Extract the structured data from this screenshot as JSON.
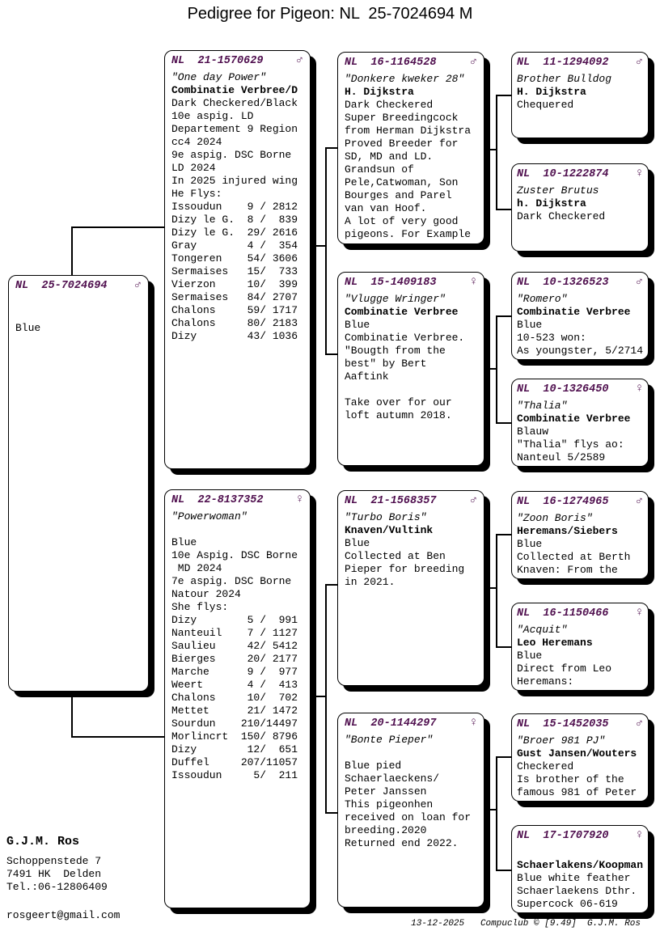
{
  "title": "Pedigree for Pigeon: NL  25-7024694 M",
  "accent_color": "#50104f",
  "boxes": [
    {
      "ring": "NL  25-7024694",
      "sex": "♂",
      "lines": [
        {
          "t": "",
          "s": "n"
        },
        {
          "t": "",
          "s": "n"
        },
        {
          "t": "Blue",
          "s": "n"
        }
      ]
    },
    {
      "ring": "NL  21-1570629",
      "sex": "♂",
      "lines": [
        {
          "t": "\"One day Power\"",
          "s": "i"
        },
        {
          "t": "Combinatie Verbree/D",
          "s": "b"
        },
        {
          "t": "Dark Checkered/Black",
          "s": "n"
        },
        {
          "t": "10e aspig. LD",
          "s": "n"
        },
        {
          "t": "Departement 9 Region",
          "s": "n"
        },
        {
          "t": "cc4 2024",
          "s": "n"
        },
        {
          "t": "9e aspig. DSC Borne",
          "s": "n"
        },
        {
          "t": "LD 2024",
          "s": "n"
        },
        {
          "t": "In 2025 injured wing",
          "s": "n"
        },
        {
          "t": "He Flys:",
          "s": "n"
        },
        {
          "t": "Issoudun    9 / 2812",
          "s": "n"
        },
        {
          "t": "Dizy le G.  8 /  839",
          "s": "n"
        },
        {
          "t": "Dizy le G.  29/ 2616",
          "s": "n"
        },
        {
          "t": "Gray        4 /  354",
          "s": "n"
        },
        {
          "t": "Tongeren    54/ 3606",
          "s": "n"
        },
        {
          "t": "Sermaises   15/  733",
          "s": "n"
        },
        {
          "t": "Vierzon     10/  399",
          "s": "n"
        },
        {
          "t": "Sermaises   84/ 2707",
          "s": "n"
        },
        {
          "t": "Chalons     59/ 1717",
          "s": "n"
        },
        {
          "t": "Chalons     80/ 2183",
          "s": "n"
        },
        {
          "t": "Dizy        43/ 1036",
          "s": "n"
        }
      ]
    },
    {
      "ring": "NL  22-8137352",
      "sex": "♀",
      "lines": [
        {
          "t": "\"Powerwoman\"",
          "s": "i"
        },
        {
          "t": "",
          "s": "n"
        },
        {
          "t": "Blue",
          "s": "n"
        },
        {
          "t": "10e Aspig. DSC Borne",
          "s": "n"
        },
        {
          "t": " MD 2024",
          "s": "n"
        },
        {
          "t": "7e aspig. DSC Borne",
          "s": "n"
        },
        {
          "t": "Natour 2024",
          "s": "n"
        },
        {
          "t": "She flys:",
          "s": "n"
        },
        {
          "t": "Dizy        5 /  991",
          "s": "n"
        },
        {
          "t": "Nanteuil    7 / 1127",
          "s": "n"
        },
        {
          "t": "Saulieu     42/ 5412",
          "s": "n"
        },
        {
          "t": "Bierges     20/ 2177",
          "s": "n"
        },
        {
          "t": "Marche      9 /  977",
          "s": "n"
        },
        {
          "t": "Weert       4 /  413",
          "s": "n"
        },
        {
          "t": "Chalons     10/  702",
          "s": "n"
        },
        {
          "t": "Mettet      21/ 1472",
          "s": "n"
        },
        {
          "t": "Sourdun    210/14497",
          "s": "n"
        },
        {
          "t": "Morlincrt  150/ 8796",
          "s": "n"
        },
        {
          "t": "Dizy        12/  651",
          "s": "n"
        },
        {
          "t": "Duffel     207/11057",
          "s": "n"
        },
        {
          "t": "Issoudun     5/  211",
          "s": "n"
        }
      ]
    },
    {
      "ring": "NL  16-1164528",
      "sex": "♂",
      "lines": [
        {
          "t": "\"Donkere kweker 28\"",
          "s": "i"
        },
        {
          "t": "H. Dijkstra",
          "s": "b"
        },
        {
          "t": "Dark Checkered",
          "s": "n"
        },
        {
          "t": "Super Breedingcock",
          "s": "n"
        },
        {
          "t": "from Herman Dijkstra",
          "s": "n"
        },
        {
          "t": "Proved Breeder for",
          "s": "n"
        },
        {
          "t": "SD, MD and LD.",
          "s": "n"
        },
        {
          "t": "Grandsun of",
          "s": "n"
        },
        {
          "t": "Pele,Catwoman, Son",
          "s": "n"
        },
        {
          "t": "Bourges and Parel",
          "s": "n"
        },
        {
          "t": "van van Hoof.",
          "s": "n"
        },
        {
          "t": "A lot of very good",
          "s": "n"
        },
        {
          "t": "pigeons. For Example",
          "s": "n"
        }
      ]
    },
    {
      "ring": "NL  15-1409183",
      "sex": "♀",
      "lines": [
        {
          "t": "\"Vlugge Wringer\"",
          "s": "i"
        },
        {
          "t": "Combinatie Verbree",
          "s": "b"
        },
        {
          "t": "Blue",
          "s": "n"
        },
        {
          "t": "Combinatie Verbree.",
          "s": "n"
        },
        {
          "t": "\"Bougth from the",
          "s": "n"
        },
        {
          "t": "best\" by Bert",
          "s": "n"
        },
        {
          "t": "Aaftink",
          "s": "n"
        },
        {
          "t": "",
          "s": "n"
        },
        {
          "t": "Take over for our",
          "s": "n"
        },
        {
          "t": "loft autumn 2018.",
          "s": "n"
        }
      ]
    },
    {
      "ring": "NL  21-1568357",
      "sex": "♂",
      "lines": [
        {
          "t": "\"Turbo Boris\"",
          "s": "i"
        },
        {
          "t": "Knaven/Vultink",
          "s": "b"
        },
        {
          "t": "Blue",
          "s": "n"
        },
        {
          "t": "Collected at Ben",
          "s": "n"
        },
        {
          "t": "Pieper for breeding",
          "s": "n"
        },
        {
          "t": "in 2021.",
          "s": "n"
        }
      ]
    },
    {
      "ring": "NL  20-1144297",
      "sex": "♀",
      "lines": [
        {
          "t": "\"Bonte Pieper\"",
          "s": "i"
        },
        {
          "t": "",
          "s": "n"
        },
        {
          "t": "Blue pied",
          "s": "n"
        },
        {
          "t": "Schaerlaeckens/",
          "s": "n"
        },
        {
          "t": "Peter Janssen",
          "s": "n"
        },
        {
          "t": "This pigeonhen",
          "s": "n"
        },
        {
          "t": "received on loan for",
          "s": "n"
        },
        {
          "t": "breeding.2020",
          "s": "n"
        },
        {
          "t": "Returned end 2022.",
          "s": "n"
        }
      ]
    },
    {
      "ring": "NL  11-1294092",
      "sex": "♂",
      "lines": [
        {
          "t": "Brother Bulldog",
          "s": "i"
        },
        {
          "t": "H. Dijkstra",
          "s": "b"
        },
        {
          "t": "Chequered",
          "s": "n"
        }
      ]
    },
    {
      "ring": "NL  10-1222874",
      "sex": "♀",
      "lines": [
        {
          "t": "Zuster Brutus",
          "s": "i"
        },
        {
          "t": "h. Dijkstra",
          "s": "b"
        },
        {
          "t": "Dark Checkered",
          "s": "n"
        }
      ]
    },
    {
      "ring": "NL  10-1326523",
      "sex": "♂",
      "lines": [
        {
          "t": "\"Romero\"",
          "s": "i"
        },
        {
          "t": "Combinatie Verbree",
          "s": "b"
        },
        {
          "t": "Blue",
          "s": "n"
        },
        {
          "t": "10-523 won:",
          "s": "n"
        },
        {
          "t": "As youngster, 5/2714",
          "s": "n"
        }
      ]
    },
    {
      "ring": "NL  10-1326450",
      "sex": "♀",
      "lines": [
        {
          "t": "\"Thalia\"",
          "s": "i"
        },
        {
          "t": "Combinatie Verbree",
          "s": "b"
        },
        {
          "t": "Blauw",
          "s": "n"
        },
        {
          "t": "\"Thalia\" flys ao:",
          "s": "n"
        },
        {
          "t": "Nanteul 5/2589",
          "s": "n"
        }
      ]
    },
    {
      "ring": "NL  16-1274965",
      "sex": "♂",
      "lines": [
        {
          "t": "\"Zoon Boris\"",
          "s": "i"
        },
        {
          "t": "Heremans/Siebers",
          "s": "b"
        },
        {
          "t": "Blue",
          "s": "n"
        },
        {
          "t": "Collected at Berth",
          "s": "n"
        },
        {
          "t": "Knaven: From the",
          "s": "n"
        }
      ]
    },
    {
      "ring": "NL  16-1150466",
      "sex": "♀",
      "lines": [
        {
          "t": "\"Acquit\"",
          "s": "i"
        },
        {
          "t": "Leo Heremans",
          "s": "b"
        },
        {
          "t": "Blue",
          "s": "n"
        },
        {
          "t": "Direct from Leo",
          "s": "n"
        },
        {
          "t": "Heremans:",
          "s": "n"
        }
      ]
    },
    {
      "ring": "NL  15-1452035",
      "sex": "♂",
      "lines": [
        {
          "t": "\"Broer 981 PJ\"",
          "s": "i"
        },
        {
          "t": "Gust Jansen/Wouters",
          "s": "b"
        },
        {
          "t": "Checkered",
          "s": "n"
        },
        {
          "t": "Is brother of the",
          "s": "n"
        },
        {
          "t": "famous 981 of Peter",
          "s": "n"
        }
      ]
    },
    {
      "ring": "NL  17-1707920",
      "sex": "♀",
      "lines": [
        {
          "t": "",
          "s": "n"
        },
        {
          "t": "Schaerlakens/Koopman",
          "s": "b"
        },
        {
          "t": "Blue white feather",
          "s": "n"
        },
        {
          "t": "Schaerlaekens Dthr.",
          "s": "n"
        },
        {
          "t": "Supercock 06-619",
          "s": "n"
        }
      ]
    }
  ],
  "owner": {
    "name": "G.J.M. Ros",
    "street": "Schoppenstede 7",
    "city": "7491 HK  Delden",
    "phone": "Tel.:06-12806409",
    "email": "rosgeert@gmail.com"
  },
  "footer": {
    "date": "13-12-2025",
    "program": "Compuclub © [9.49]",
    "author": "G.J.M. Ros"
  }
}
